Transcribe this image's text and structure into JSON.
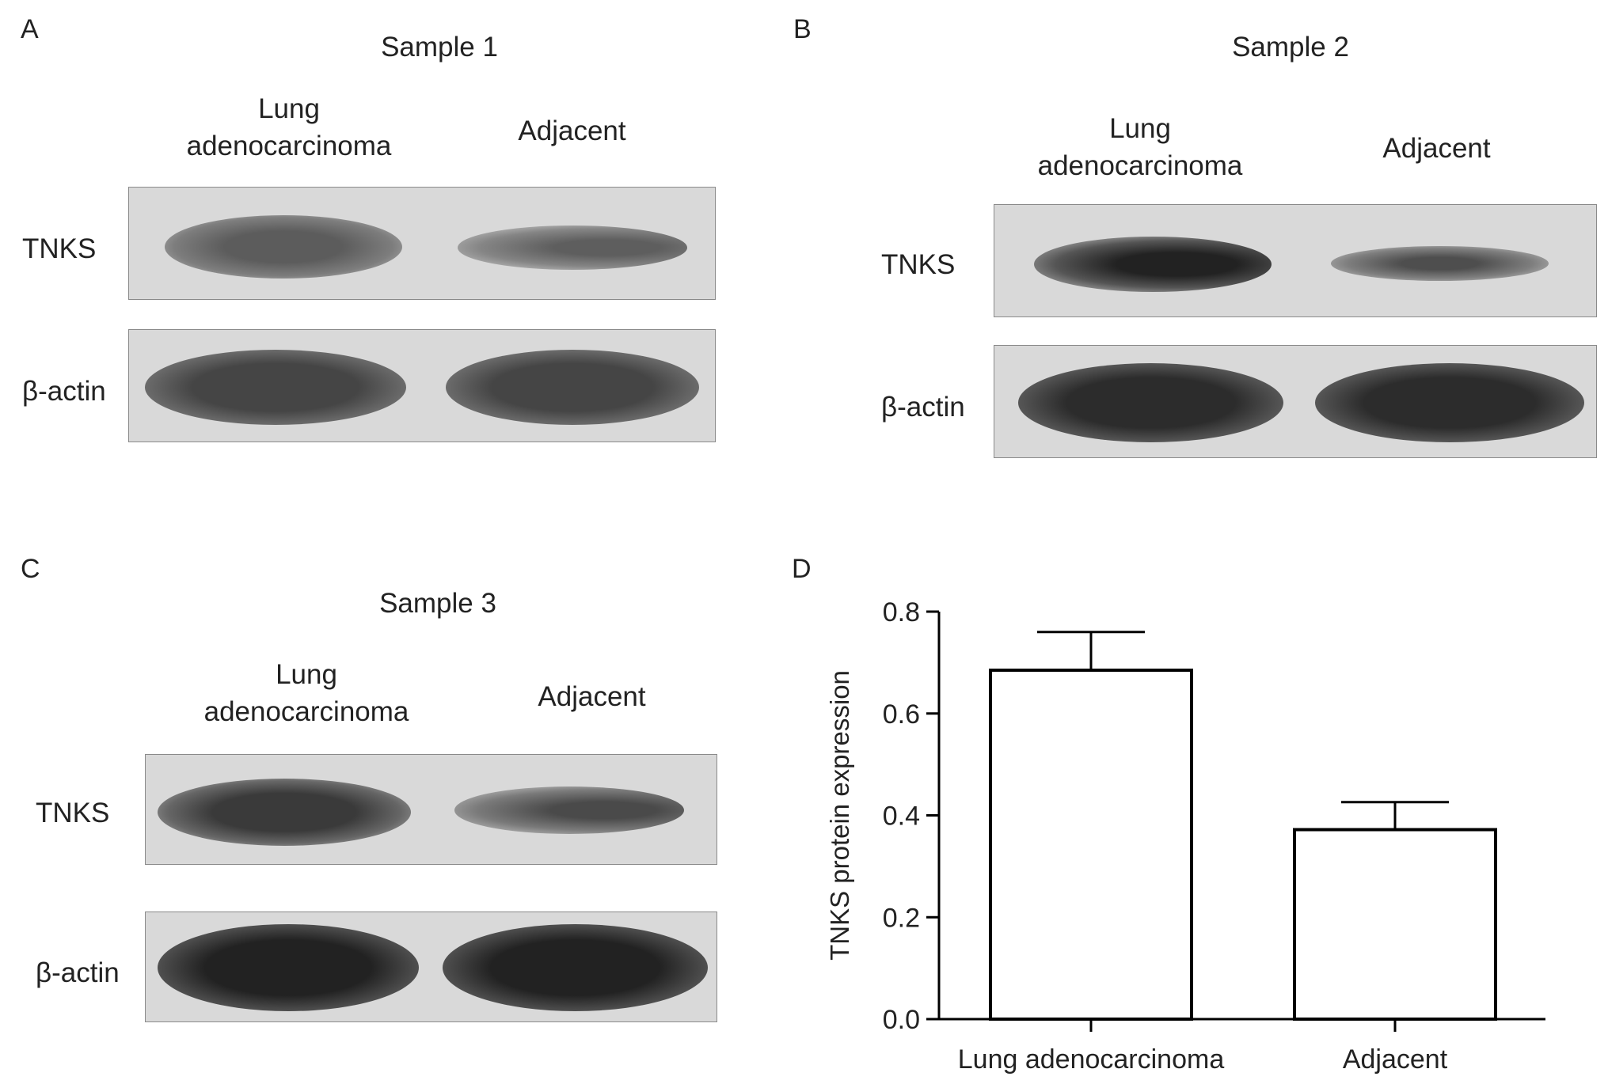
{
  "panels": {
    "A": {
      "letter": "A",
      "title": "Sample 1",
      "lane1": "Lung adenocarcinoma",
      "lane2": "Adjacent",
      "row1": "TNKS",
      "row2": "β-actin"
    },
    "B": {
      "letter": "B",
      "title": "Sample 2",
      "lane1": "Lung adenocarcinoma",
      "lane2": "Adjacent",
      "row1": "TNKS",
      "row2": "β-actin"
    },
    "C": {
      "letter": "C",
      "title": "Sample 3",
      "lane1": "Lung adenocarcinoma",
      "lane2": "Adjacent",
      "row1": "TNKS",
      "row2": "β-actin"
    },
    "D": {
      "letter": "D"
    }
  },
  "chart_data": {
    "type": "bar",
    "categories": [
      "Lung adenocarcinoma",
      "Adjacent"
    ],
    "values": [
      0.685,
      0.372
    ],
    "error_upper": [
      0.76,
      0.426
    ],
    "ylabel": "TNKS protein expression",
    "xlabel": "",
    "ylim": [
      0.0,
      0.8
    ],
    "yticks": [
      "0.0",
      "0.2",
      "0.4",
      "0.6",
      "0.8"
    ],
    "grid": false
  }
}
